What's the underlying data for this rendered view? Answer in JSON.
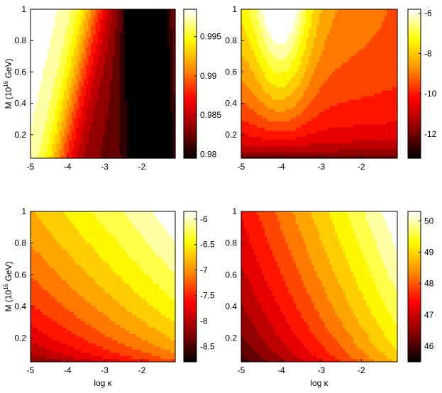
{
  "figure": {
    "colormap": [
      "#000000",
      "#8b0000",
      "#ff0000",
      "#ff8c00",
      "#ffff00",
      "#ffffff"
    ]
  },
  "chart_data": [
    {
      "type": "heatmap",
      "title": "",
      "xlabel": "",
      "ylabel_main": "M (10",
      "ylabel_sup": "16",
      "ylabel_end": " GeV)",
      "xlim": [
        -5,
        -1.1
      ],
      "ylim": [
        0.05,
        1.0
      ],
      "xticks": [
        -5,
        -4,
        -3,
        -2
      ],
      "xtick_labels": [
        "-5",
        "-4",
        "-3",
        "-2"
      ],
      "yticks": [
        0.2,
        0.4,
        0.6,
        0.8,
        1.0
      ],
      "ytick_labels": [
        "0.2",
        "0.4",
        "0.6",
        "0.8",
        "1"
      ],
      "colorbar": {
        "range": [
          0.9795,
          0.9985
        ],
        "ticks": [
          0.98,
          0.985,
          0.99,
          0.995
        ],
        "tick_labels": [
          "0.98",
          "0.985",
          "0.99",
          "0.995"
        ]
      }
    },
    {
      "type": "heatmap",
      "title": "",
      "xlabel": "",
      "ylabel_main": "",
      "ylabel_sup": "",
      "ylabel_end": "",
      "xlim": [
        -5,
        -1.1
      ],
      "ylim": [
        0.05,
        1.0
      ],
      "xticks": [
        -5,
        -4,
        -3,
        -2
      ],
      "xtick_labels": [
        "-5",
        "-4",
        "-3",
        "-2"
      ],
      "yticks": [
        0.2,
        0.4,
        0.6,
        0.8,
        1.0
      ],
      "ytick_labels": [
        "0.2",
        "0.4",
        "0.6",
        "0.8",
        "1"
      ],
      "colorbar": {
        "range": [
          -13.2,
          -5.8
        ],
        "ticks": [
          -12,
          -10,
          -8,
          -6
        ],
        "tick_labels": [
          "-12",
          "-10",
          "-8",
          "-6"
        ]
      }
    },
    {
      "type": "heatmap",
      "title": "",
      "xlabel": "log κ",
      "ylabel_main": "M (10",
      "ylabel_sup": "16",
      "ylabel_end": " GeV)",
      "xlim": [
        -5,
        -1.1
      ],
      "ylim": [
        0.05,
        1.0
      ],
      "xticks": [
        -5,
        -4,
        -3,
        -2
      ],
      "xtick_labels": [
        "-5",
        "-4",
        "-3",
        "-2"
      ],
      "yticks": [
        0.2,
        0.4,
        0.6,
        0.8,
        1.0
      ],
      "ytick_labels": [
        "0.2",
        "0.4",
        "0.6",
        "0.8",
        "1"
      ],
      "colorbar": {
        "range": [
          -8.8,
          -5.85
        ],
        "ticks": [
          -8.5,
          -8,
          -7.5,
          -7,
          -6.5,
          -6
        ],
        "tick_labels": [
          "-8.5",
          "-8",
          "-7.5",
          "-7",
          "-6.5",
          "-6"
        ]
      }
    },
    {
      "type": "heatmap",
      "title": "",
      "xlabel": "log κ",
      "ylabel_main": "",
      "ylabel_sup": "",
      "ylabel_end": "",
      "xlim": [
        -5,
        -1.1
      ],
      "ylim": [
        0.05,
        1.0
      ],
      "xticks": [
        -5,
        -4,
        -3,
        -2
      ],
      "xtick_labels": [
        "-5",
        "-4",
        "-3",
        "-2"
      ],
      "yticks": [
        0.2,
        0.4,
        0.6,
        0.8,
        1.0
      ],
      "ytick_labels": [
        "0.2",
        "0.4",
        "0.6",
        "0.8",
        "1"
      ],
      "colorbar": {
        "range": [
          45.5,
          50.3
        ],
        "ticks": [
          46,
          47,
          48,
          49,
          50
        ],
        "tick_labels": [
          "46",
          "47",
          "48",
          "49",
          "50"
        ]
      }
    }
  ]
}
